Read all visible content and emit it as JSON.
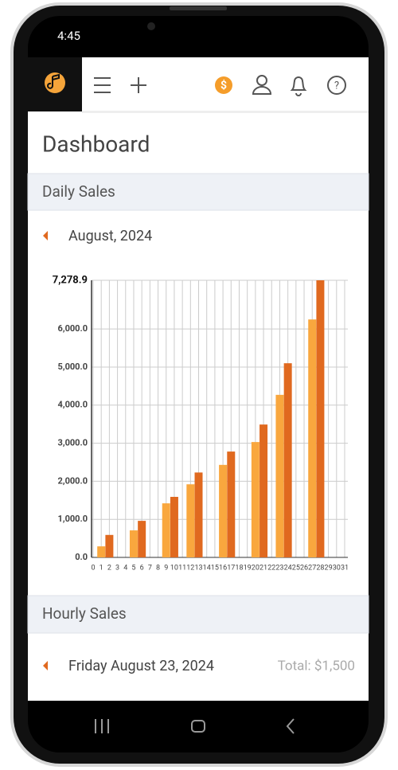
{
  "status_bar": {
    "time": "4:45"
  },
  "header": {
    "currency_icon": "$",
    "help_icon": "?"
  },
  "page_title": "Dashboard",
  "daily_sales": {
    "title": "Daily Sales",
    "period": "August, 2024"
  },
  "chart_data": {
    "type": "bar",
    "xlim": [
      0,
      31
    ],
    "xticks": [
      0,
      1,
      2,
      3,
      4,
      5,
      6,
      7,
      8,
      9,
      10,
      11,
      12,
      13,
      14,
      15,
      16,
      17,
      18,
      19,
      20,
      21,
      22,
      23,
      24,
      25,
      26,
      27,
      28,
      29,
      30,
      31
    ],
    "ylim": [
      0,
      7278.9
    ],
    "yticks": [
      {
        "value": 0,
        "label": "0.0"
      },
      {
        "value": 1000,
        "label": "1,000.0"
      },
      {
        "value": 2000,
        "label": "2,000.0"
      },
      {
        "value": 3000,
        "label": "3,000.0"
      },
      {
        "value": 4000,
        "label": "4,000.0"
      },
      {
        "value": 5000,
        "label": "5,000.0"
      },
      {
        "value": 6000,
        "label": "6,000.0"
      },
      {
        "value": 7278.9,
        "label": "7,278.9"
      }
    ],
    "grid": true,
    "series": [
      {
        "color": "#f9a73e",
        "x": [
          1,
          5,
          9,
          12,
          16,
          20,
          23,
          27
        ],
        "values": [
          290,
          710,
          1420,
          1920,
          2430,
          3030,
          4270,
          6250
        ]
      },
      {
        "color": "#e0691f",
        "x": [
          2,
          6,
          10,
          13,
          17,
          21,
          24,
          28
        ],
        "values": [
          590,
          960,
          1590,
          2230,
          2780,
          3490,
          5100,
          7278.9
        ]
      }
    ]
  },
  "hourly_sales": {
    "title": "Hourly Sales",
    "date": "Friday August 23, 2024",
    "total": "Total: $1,500"
  }
}
